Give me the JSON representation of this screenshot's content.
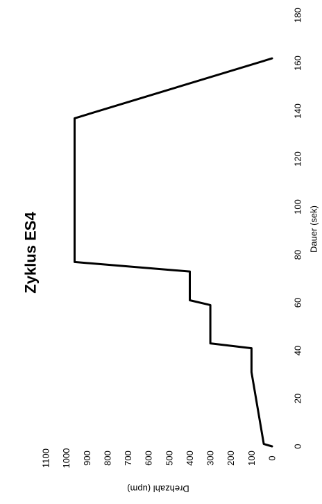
{
  "chart_data": {
    "type": "line",
    "title": "Zyklus ES4",
    "xlabel": "Dauer (sek)",
    "ylabel": "Drehzahl (upm)",
    "xlim": [
      0,
      180
    ],
    "ylim": [
      0,
      1100
    ],
    "xticks": [
      0,
      20,
      40,
      60,
      80,
      100,
      120,
      140,
      160,
      180
    ],
    "yticks": [
      0,
      100,
      200,
      300,
      400,
      500,
      600,
      700,
      800,
      900,
      1000,
      1100
    ],
    "grid": false,
    "rotation": "90deg-counterclockwise",
    "series": [
      {
        "x": [
          0,
          1,
          31,
          41,
          43,
          59,
          61,
          73,
          77,
          137,
          162
        ],
        "y": [
          0,
          40,
          100,
          100,
          300,
          300,
          400,
          400,
          960,
          960,
          0
        ]
      }
    ],
    "line_color": "#000000"
  }
}
